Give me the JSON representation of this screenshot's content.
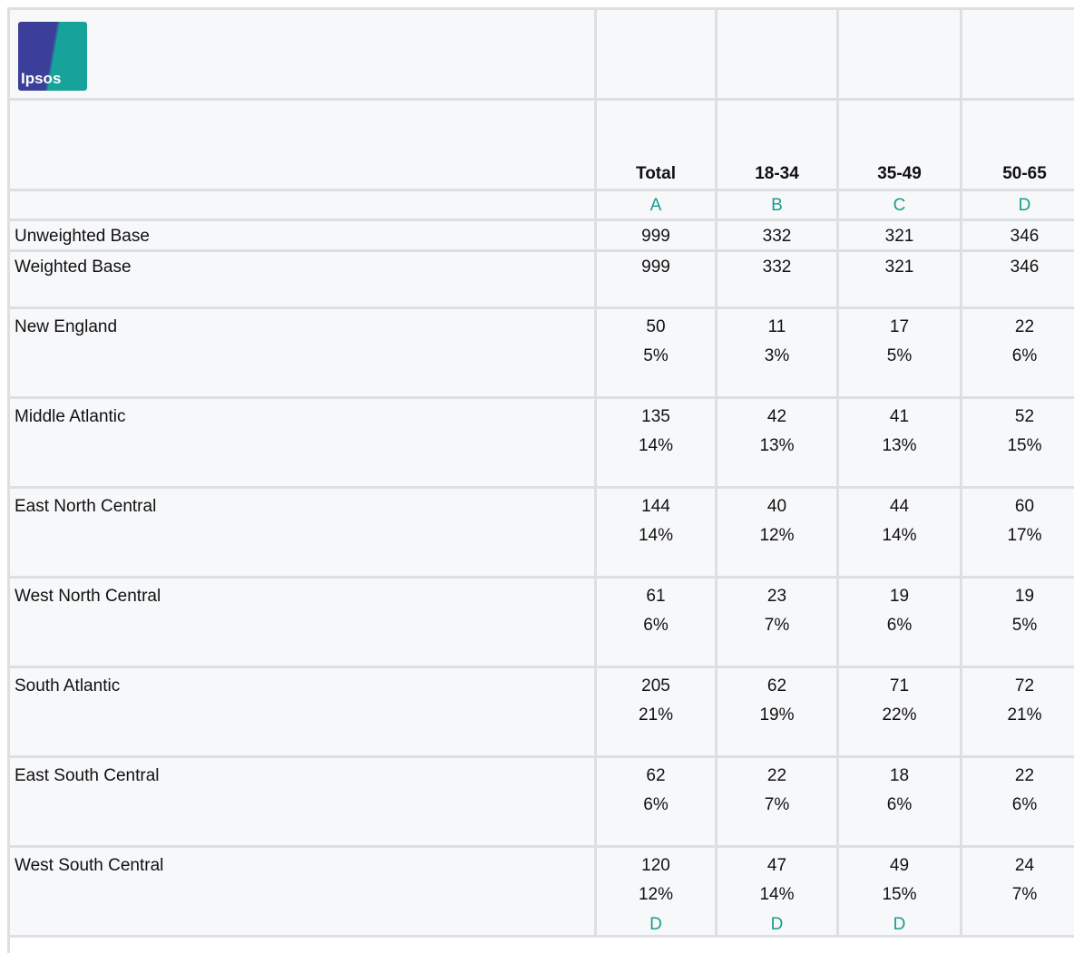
{
  "logo": {
    "text": "Ipsos"
  },
  "columns": [
    {
      "label": "Total",
      "letter": "A"
    },
    {
      "label": "18-34",
      "letter": "B"
    },
    {
      "label": "35-49",
      "letter": "C"
    },
    {
      "label": "50-65",
      "letter": "D"
    }
  ],
  "bases": [
    {
      "label": "Unweighted Base",
      "values": [
        999,
        332,
        321,
        346
      ]
    },
    {
      "label": "Weighted Base",
      "values": [
        999,
        332,
        321,
        346
      ]
    }
  ],
  "rows": [
    {
      "label": "New England",
      "counts": [
        50,
        11,
        17,
        22
      ],
      "percents": [
        "5%",
        "3%",
        "5%",
        "6%"
      ]
    },
    {
      "label": "Middle Atlantic",
      "counts": [
        135,
        42,
        41,
        52
      ],
      "percents": [
        "14%",
        "13%",
        "13%",
        "15%"
      ]
    },
    {
      "label": "East North Central",
      "counts": [
        144,
        40,
        44,
        60
      ],
      "percents": [
        "14%",
        "12%",
        "14%",
        "17%"
      ]
    },
    {
      "label": "West North Central",
      "counts": [
        61,
        23,
        19,
        19
      ],
      "percents": [
        "6%",
        "7%",
        "6%",
        "5%"
      ]
    },
    {
      "label": "South Atlantic",
      "counts": [
        205,
        62,
        71,
        72
      ],
      "percents": [
        "21%",
        "19%",
        "22%",
        "21%"
      ]
    },
    {
      "label": "East South Central",
      "counts": [
        62,
        22,
        18,
        22
      ],
      "percents": [
        "6%",
        "7%",
        "6%",
        "6%"
      ]
    },
    {
      "label": "West South Central",
      "counts": [
        120,
        47,
        49,
        24
      ],
      "percents": [
        "12%",
        "14%",
        "15%",
        "7%"
      ],
      "sig": [
        "D",
        "D",
        "D",
        null
      ]
    }
  ]
}
